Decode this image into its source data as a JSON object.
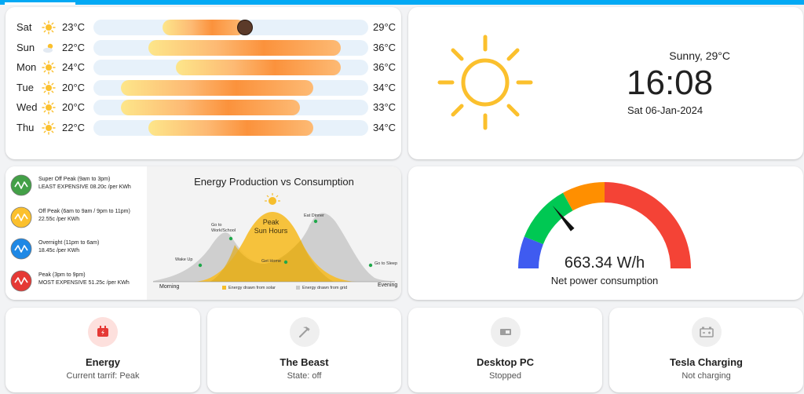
{
  "colors": {
    "accent": "#03a9f4",
    "sun": "#fbc02d",
    "bar_track": "#e7f1fa",
    "energy_icon_bg": "#fde0dd",
    "energy_icon": "#e53935"
  },
  "forecast": {
    "days": [
      {
        "day": "Sat",
        "icon": "sunny-icon",
        "low": "23°C",
        "high": "29°C",
        "low_value": 23,
        "high_value": 29,
        "current_value": 29
      },
      {
        "day": "Sun",
        "icon": "partly-cloudy-icon",
        "low": "22°C",
        "high": "36°C",
        "low_value": 22,
        "high_value": 36
      },
      {
        "day": "Mon",
        "icon": "sunny-icon",
        "low": "24°C",
        "high": "36°C",
        "low_value": 24,
        "high_value": 36
      },
      {
        "day": "Tue",
        "icon": "sunny-icon",
        "low": "20°C",
        "high": "34°C",
        "low_value": 20,
        "high_value": 34
      },
      {
        "day": "Wed",
        "icon": "sunny-icon",
        "low": "20°C",
        "high": "33°C",
        "low_value": 20,
        "high_value": 33
      },
      {
        "day": "Thu",
        "icon": "sunny-icon",
        "low": "22°C",
        "high": "34°C",
        "low_value": 22,
        "high_value": 34
      }
    ]
  },
  "clock": {
    "condition": "Sunny, 29°C",
    "time": "16:08",
    "date": "Sat 06-Jan-2024",
    "icon": "sun-icon"
  },
  "tariffs": [
    {
      "name": "Super Off Peak (9am to 3pm)",
      "price": "LEAST EXPENSIVE 08.20c /per KWh",
      "color": "#43a047",
      "icon": "wave-icon"
    },
    {
      "name": "Off Peak (6am to 9am / 9pm to 11pm)",
      "price": "22.55c /per KWh",
      "color": "#fbc02d",
      "icon": "wave-icon"
    },
    {
      "name": "Overnight (11pm to 6am)",
      "price": "18.45c /per KWh",
      "color": "#1e88e5",
      "icon": "wave-icon"
    },
    {
      "name": "Peak (3pm to 9pm)",
      "price": "MOST EXPENSIVE 51.25c /per KWh",
      "color": "#e53935",
      "icon": "wave-icon"
    }
  ],
  "infographic": {
    "title": "Energy Production vs Consumption",
    "peak_line1": "Peak",
    "peak_line2": "Sun Hours",
    "events": {
      "wake_up": "Wake Up",
      "go_to_work": "Go to Work/School",
      "get_home": "Get Home",
      "eat_dinner": "Eat Dinner",
      "go_to_sleep": "Go to Sleep"
    },
    "axis_start": "Morning",
    "axis_end": "Evening",
    "legend": [
      {
        "label": "Energy drawn from solar",
        "color": "#f6be2c"
      },
      {
        "label": "Energy drawn from grid",
        "color": "#c9c9c9"
      }
    ]
  },
  "gauge": {
    "value": "663.34 W/h",
    "label": "Net power consumption",
    "level_fraction": 0.28,
    "segments": [
      {
        "color": "#3f5bf0",
        "from": 0.0,
        "to": 0.12
      },
      {
        "color": "#00c853",
        "from": 0.12,
        "to": 0.34
      },
      {
        "color": "#ff8f00",
        "from": 0.34,
        "to": 0.5
      },
      {
        "color": "#f44336",
        "from": 0.5,
        "to": 1.0
      }
    ]
  },
  "tiles": [
    {
      "name": "Energy",
      "state": "Current tarrif: Peak",
      "icon": "meter-electric-icon"
    },
    {
      "name": "The Beast",
      "state": "State: off",
      "icon": "pickaxe-icon"
    },
    {
      "name": "Desktop PC",
      "state": "Stopped",
      "icon": "desktop-tower-icon"
    },
    {
      "name": "Tesla Charging",
      "state": "Not charging",
      "icon": "car-battery-icon"
    }
  ]
}
